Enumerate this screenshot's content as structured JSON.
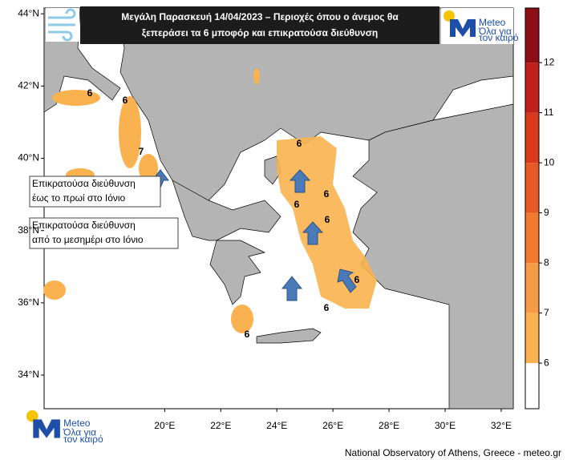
{
  "header": {
    "title_lines": [
      "Μεγάλη Παρασκευή 14/04/2023 – Περιοχές όπου ο άνεμος θα",
      "ξεπεράσει τα 6 μποφόρ και επικρατούσα διεύθυνση"
    ]
  },
  "logo": {
    "name": "Meteo",
    "tagline_lines": [
      "Όλα για",
      "τον καιρό"
    ]
  },
  "map": {
    "latlim": [
      33.07,
      44.16
    ],
    "lonlim": [
      15.7,
      32.43
    ],
    "lat_ticks": [
      {
        "value": 44,
        "label": "44°N"
      },
      {
        "value": 42,
        "label": "42°N"
      },
      {
        "value": 40,
        "label": "40°N"
      },
      {
        "value": 38,
        "label": "38°N"
      },
      {
        "value": 36,
        "label": "36°N"
      },
      {
        "value": 34,
        "label": "34°N"
      }
    ],
    "lon_ticks": [
      {
        "value": 20,
        "label": "20°E"
      },
      {
        "value": 22,
        "label": "22°E"
      },
      {
        "value": 24,
        "label": "24°E"
      },
      {
        "value": 26,
        "label": "26°E"
      },
      {
        "value": 28,
        "label": "28°E"
      },
      {
        "value": 30,
        "label": "30°E"
      },
      {
        "value": 32,
        "label": "32°E"
      }
    ],
    "contour_labels": [
      6,
      6,
      7,
      6,
      6,
      6,
      6,
      6,
      6,
      6
    ],
    "annotations": [
      [
        "Επικρατούσα διεύθυνση",
        "έως το πρωί στο Ιόνιο"
      ],
      [
        "Επικρατούσα διεύθυνση",
        "από το μεσημέρι στο Ιόνιο"
      ]
    ]
  },
  "colorbar": {
    "range": [
      5.09,
      13.09
    ],
    "levels": [
      6,
      7,
      8,
      9,
      10,
      11,
      12
    ],
    "colors": [
      "#ffffff",
      "#f9b24f",
      "#f59a45",
      "#ef7a30",
      "#e85a25",
      "#d83a1e",
      "#c0201c",
      "#8b0f14"
    ]
  },
  "footer": "National Observatory of Athens, Greece - meteo.gr"
}
